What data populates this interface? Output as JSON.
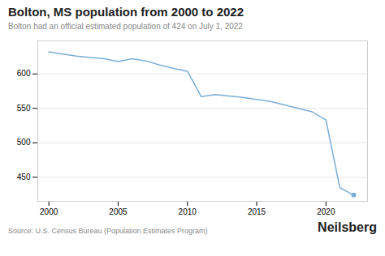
{
  "chart_data": {
    "type": "line",
    "title": "Bolton, MS population from 2000 to 2022",
    "subtitle": "Bolton had an official estimated population of 424 on July 1, 2022",
    "annotations": [
      "Source: U.S. Census Bureau (Population Estimates Program)",
      "Neilsberg"
    ],
    "x": [
      2000,
      2001,
      2002,
      2003,
      2004,
      2005,
      2006,
      2007,
      2008,
      2009,
      2010,
      2011,
      2012,
      2013,
      2014,
      2015,
      2016,
      2017,
      2018,
      2019,
      2020,
      2021,
      2022
    ],
    "values": [
      632,
      629,
      626,
      624,
      622,
      618,
      622,
      619,
      613,
      608,
      604,
      567,
      570,
      568,
      566,
      563,
      560,
      555,
      550,
      545,
      533,
      435,
      424
    ],
    "color": "#7BAFD4",
    "xlim": [
      1999.2,
      2023.0
    ],
    "xticks": [
      2000,
      2005,
      2010,
      2015,
      2020
    ],
    "ylim": [
      415,
      648
    ],
    "yticks": [
      450,
      500,
      550,
      600
    ],
    "grid": true
  }
}
